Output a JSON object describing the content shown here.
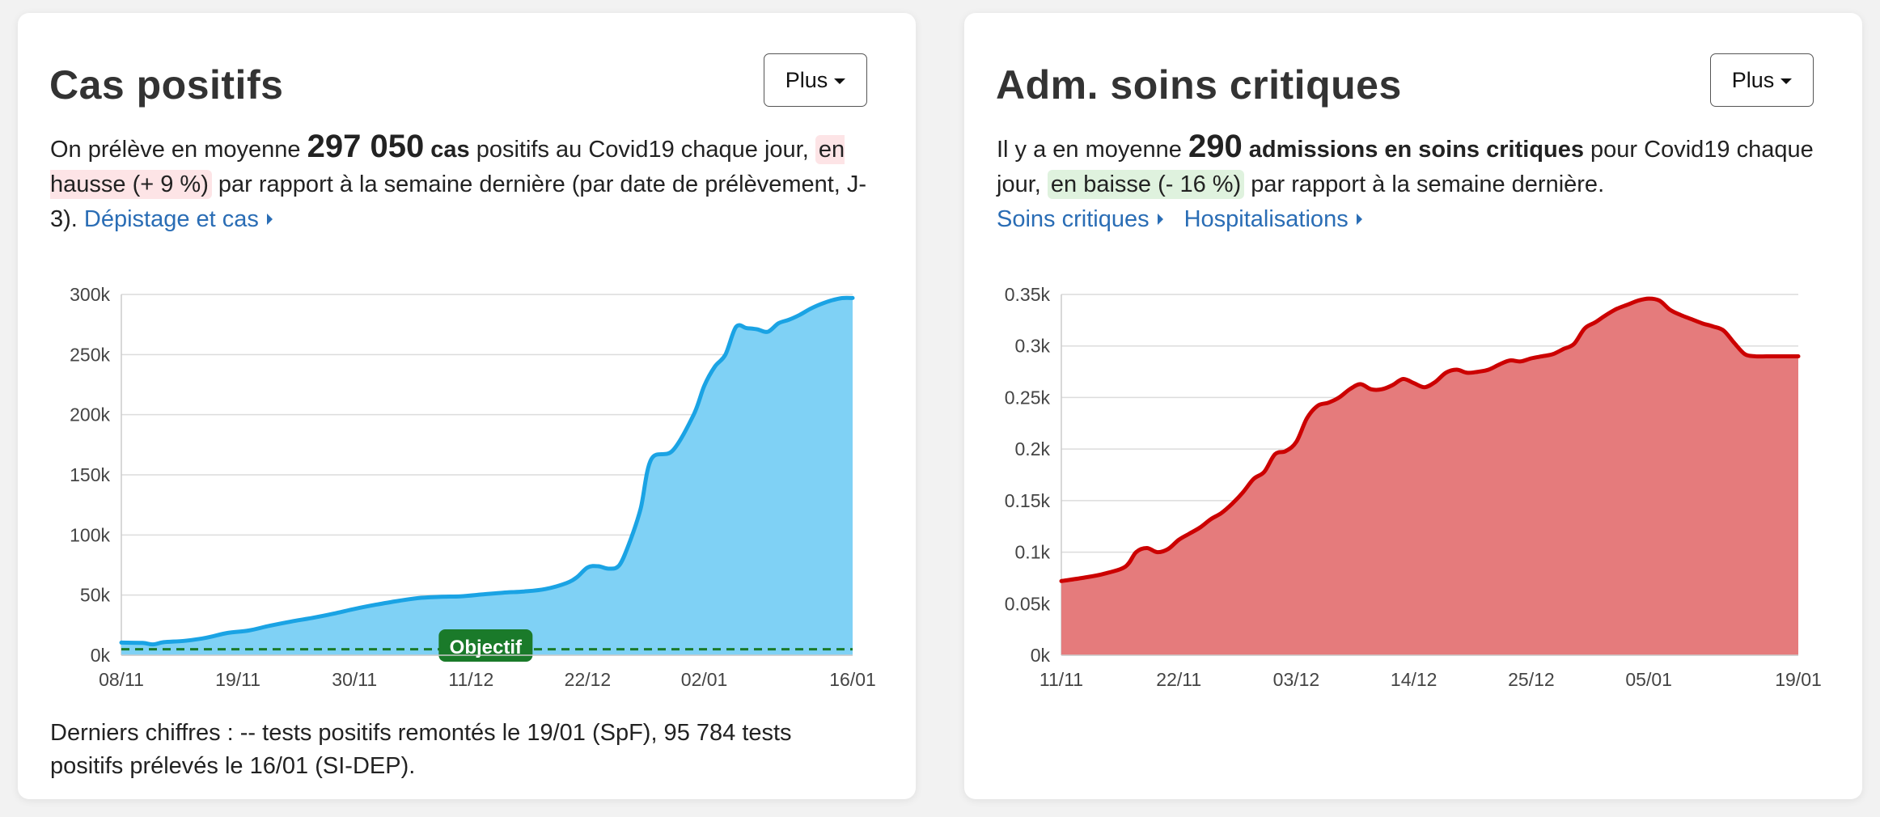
{
  "cards": [
    {
      "title": "Cas positifs",
      "button_label": "Plus",
      "desc": {
        "pre": "On prélève en moyenne ",
        "value": "297 050",
        "unit": " cas",
        "mid": " positifs au Covid19 chaque jour, ",
        "trend": "en hausse (+ 9 %)",
        "post": " par rapport à la semaine dernière (par date de prélèvement, J-3). "
      },
      "links": [
        "Dépistage et cas"
      ],
      "footer": "Derniers chiffres : -- tests positifs remontés le 19/01 (SpF), 95 784 tests positifs prélevés le 16/01 (SI-DEP)."
    },
    {
      "title": "Adm. soins critiques",
      "button_label": "Plus",
      "desc": {
        "pre": "Il y a en moyenne ",
        "value": "290",
        "unit": " admissions en soins critiques",
        "mid": " pour Covid19 chaque jour, ",
        "trend": "en baisse (- 16 %)",
        "post": " par rapport à la semaine dernière."
      },
      "links": [
        "Soins critiques",
        "Hospitalisations"
      ]
    }
  ],
  "colors": {
    "cases_fill": "#7fd1f5",
    "cases_line": "#1aa3e4",
    "objective_line": "#1a7a2a",
    "icu_fill": "#e57b7c",
    "icu_line": "#cc0000",
    "link": "#2a6db5",
    "trend_up_bg": "#fde4e6",
    "trend_down_bg": "#dff2de"
  },
  "chart_data": [
    {
      "type": "area",
      "ylim": [
        0,
        300000
      ],
      "yticks": [
        0,
        50000,
        100000,
        150000,
        200000,
        250000,
        300000
      ],
      "ytick_labels": [
        "0k",
        "50k",
        "100k",
        "150k",
        "200k",
        "250k",
        "300k"
      ],
      "xtick_labels": [
        "08/11",
        "19/11",
        "30/11",
        "11/12",
        "22/12",
        "02/01",
        "16/01"
      ],
      "xtick_days": [
        0,
        11,
        22,
        33,
        44,
        55,
        69
      ],
      "x_days": [
        0,
        2,
        3,
        4,
        6,
        8,
        10,
        12,
        14,
        16,
        18,
        20,
        22,
        24,
        26,
        28,
        30,
        32,
        34,
        36,
        38,
        40,
        42,
        43,
        44,
        45,
        46,
        47,
        48,
        49,
        50,
        52,
        54,
        55,
        56,
        57,
        58,
        59,
        60,
        61,
        62,
        63,
        64,
        65,
        66,
        67,
        68,
        69
      ],
      "values": [
        10500,
        10200,
        9000,
        10800,
        12000,
        14500,
        18500,
        20500,
        24500,
        28000,
        31000,
        34500,
        38500,
        42000,
        45000,
        47500,
        48500,
        49000,
        50500,
        52000,
        53000,
        55000,
        60000,
        65000,
        73000,
        74000,
        72000,
        75000,
        95000,
        122000,
        163000,
        170000,
        200000,
        224000,
        240000,
        250000,
        273000,
        272000,
        271000,
        269000,
        276000,
        279000,
        283000,
        288000,
        292000,
        295000,
        297000,
        297050
      ],
      "objective": {
        "label": "Objectif",
        "value": 5000
      }
    },
    {
      "type": "area",
      "ylim": [
        0,
        0.35
      ],
      "yticks": [
        0,
        0.05,
        0.1,
        0.15,
        0.2,
        0.25,
        0.3,
        0.35
      ],
      "ytick_labels": [
        "0k",
        "0.05k",
        "0.1k",
        "0.15k",
        "0.2k",
        "0.25k",
        "0.3k",
        "0.35k"
      ],
      "xtick_labels": [
        "11/11",
        "22/11",
        "03/12",
        "14/12",
        "25/12",
        "05/01",
        "19/01"
      ],
      "xtick_days": [
        0,
        11,
        22,
        33,
        44,
        55,
        69
      ],
      "x_days": [
        0,
        2,
        4,
        6,
        7,
        8,
        9,
        10,
        11,
        12,
        13,
        14,
        15,
        16,
        17,
        18,
        19,
        20,
        21,
        22,
        23,
        24,
        25,
        26,
        27,
        28,
        29,
        30,
        31,
        32,
        33,
        34,
        35,
        36,
        37,
        38,
        39,
        40,
        41,
        42,
        43,
        44,
        45,
        46,
        47,
        48,
        49,
        50,
        51,
        52,
        53,
        54,
        55,
        56,
        57,
        58,
        59,
        60,
        61,
        62,
        63,
        64,
        65,
        66,
        67,
        68,
        69
      ],
      "values": [
        0.072,
        0.075,
        0.079,
        0.086,
        0.1,
        0.104,
        0.1,
        0.103,
        0.112,
        0.118,
        0.124,
        0.132,
        0.138,
        0.147,
        0.158,
        0.171,
        0.178,
        0.195,
        0.198,
        0.207,
        0.23,
        0.242,
        0.245,
        0.25,
        0.258,
        0.263,
        0.258,
        0.258,
        0.262,
        0.268,
        0.264,
        0.26,
        0.265,
        0.274,
        0.277,
        0.274,
        0.275,
        0.277,
        0.282,
        0.286,
        0.285,
        0.288,
        0.29,
        0.292,
        0.297,
        0.302,
        0.317,
        0.323,
        0.33,
        0.336,
        0.34,
        0.344,
        0.346,
        0.344,
        0.335,
        0.33,
        0.326,
        0.322,
        0.319,
        0.315,
        0.303,
        0.292,
        0.29,
        0.29,
        0.29,
        0.29,
        0.29
      ]
    }
  ]
}
